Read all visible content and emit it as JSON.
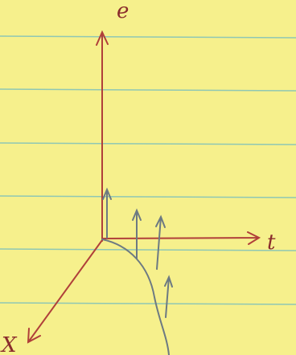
{
  "labels": {
    "vertical": "e",
    "right": "t",
    "left": "X"
  }
}
